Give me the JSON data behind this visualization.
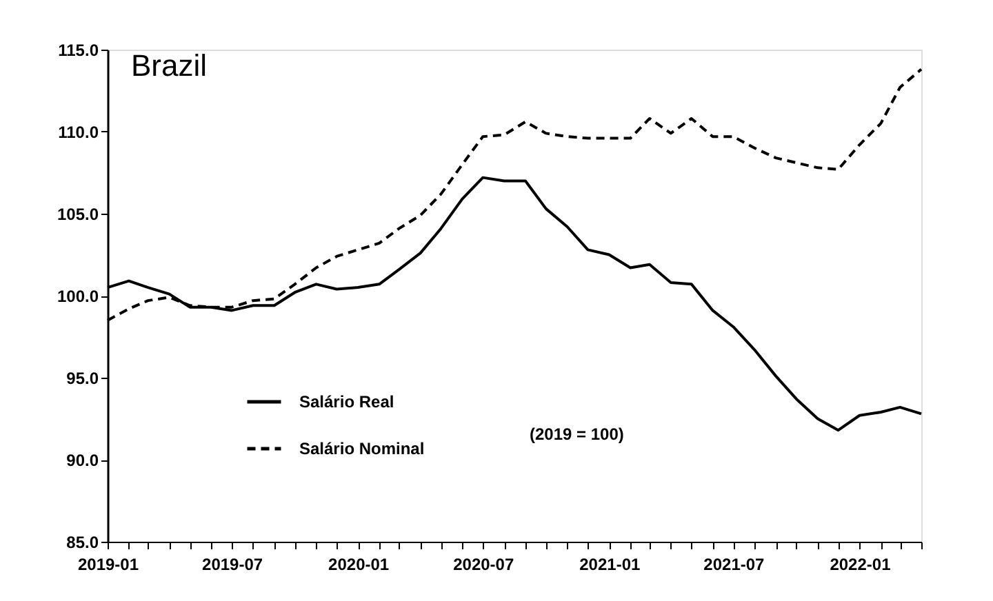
{
  "chart_data": {
    "type": "line",
    "title": "Brazil",
    "annotations": [
      "(2019 = 100)"
    ],
    "x": [
      "2019-01",
      "2019-02",
      "2019-03",
      "2019-04",
      "2019-05",
      "2019-06",
      "2019-07",
      "2019-08",
      "2019-09",
      "2019-10",
      "2019-11",
      "2019-12",
      "2020-01",
      "2020-02",
      "2020-03",
      "2020-04",
      "2020-05",
      "2020-06",
      "2020-07",
      "2020-08",
      "2020-09",
      "2020-10",
      "2020-11",
      "2020-12",
      "2021-01",
      "2021-02",
      "2021-03",
      "2021-04",
      "2021-05",
      "2021-06",
      "2021-07",
      "2021-08",
      "2021-09",
      "2021-10",
      "2021-11",
      "2021-12",
      "2022-01",
      "2022-02",
      "2022-03",
      "2022-04"
    ],
    "series": [
      {
        "name": "Salário Real",
        "color": "#000000",
        "line_style": "solid",
        "values": [
          100.5,
          100.9,
          100.5,
          100.1,
          99.3,
          99.3,
          99.1,
          99.4,
          99.4,
          100.2,
          100.7,
          100.4,
          100.5,
          100.7,
          101.6,
          102.6,
          104.1,
          105.9,
          107.2,
          107.0,
          107.0,
          105.3,
          104.2,
          102.8,
          102.5,
          101.7,
          101.9,
          100.8,
          100.7,
          99.1,
          98.1,
          96.7,
          95.1,
          93.7,
          92.5,
          91.8,
          92.7,
          92.9,
          93.2,
          92.8
        ]
      },
      {
        "name": "Salário Nominal",
        "color": "#000000",
        "line_style": "dashed",
        "values": [
          98.5,
          99.2,
          99.7,
          99.9,
          99.4,
          99.3,
          99.3,
          99.7,
          99.8,
          100.7,
          101.7,
          102.4,
          102.8,
          103.2,
          104.1,
          104.9,
          106.2,
          108.0,
          109.7,
          109.8,
          110.6,
          109.9,
          109.7,
          109.6,
          109.6,
          109.6,
          110.8,
          109.9,
          110.8,
          109.7,
          109.7,
          109.0,
          108.4,
          108.1,
          107.8,
          107.7,
          109.2,
          110.5,
          112.7,
          113.8
        ]
      }
    ],
    "xlim": [
      "2019-01",
      "2022-04"
    ],
    "xticks": [
      {
        "value": "2019-01",
        "label": "2019-01"
      },
      {
        "value": "2019-02",
        "label": null
      },
      {
        "value": "2019-03",
        "label": null
      },
      {
        "value": "2019-04",
        "label": null
      },
      {
        "value": "2019-05",
        "label": null
      },
      {
        "value": "2019-06",
        "label": null
      },
      {
        "value": "2019-07",
        "label": "2019-07"
      },
      {
        "value": "2019-08",
        "label": null
      },
      {
        "value": "2019-09",
        "label": null
      },
      {
        "value": "2019-10",
        "label": null
      },
      {
        "value": "2019-11",
        "label": null
      },
      {
        "value": "2019-12",
        "label": null
      },
      {
        "value": "2020-01",
        "label": "2020-01"
      },
      {
        "value": "2020-02",
        "label": null
      },
      {
        "value": "2020-03",
        "label": null
      },
      {
        "value": "2020-04",
        "label": null
      },
      {
        "value": "2020-05",
        "label": null
      },
      {
        "value": "2020-06",
        "label": null
      },
      {
        "value": "2020-07",
        "label": "2020-07"
      },
      {
        "value": "2020-08",
        "label": null
      },
      {
        "value": "2020-09",
        "label": null
      },
      {
        "value": "2020-10",
        "label": null
      },
      {
        "value": "2020-11",
        "label": null
      },
      {
        "value": "2020-12",
        "label": null
      },
      {
        "value": "2021-01",
        "label": "2021-01"
      },
      {
        "value": "2021-02",
        "label": null
      },
      {
        "value": "2021-03",
        "label": null
      },
      {
        "value": "2021-04",
        "label": null
      },
      {
        "value": "2021-05",
        "label": null
      },
      {
        "value": "2021-06",
        "label": null
      },
      {
        "value": "2021-07",
        "label": "2021-07"
      },
      {
        "value": "2021-08",
        "label": null
      },
      {
        "value": "2021-09",
        "label": null
      },
      {
        "value": "2021-10",
        "label": null
      },
      {
        "value": "2021-11",
        "label": null
      },
      {
        "value": "2021-12",
        "label": null
      },
      {
        "value": "2022-01",
        "label": "2022-01"
      },
      {
        "value": "2022-02",
        "label": null
      },
      {
        "value": "2022-03",
        "label": null
      },
      {
        "value": "2022-04",
        "label": null
      }
    ],
    "ylim": [
      85,
      115
    ],
    "yticks": [
      {
        "value": 85,
        "label": "85.0"
      },
      {
        "value": 90,
        "label": "90.0"
      },
      {
        "value": 95,
        "label": "95.0"
      },
      {
        "value": 100,
        "label": "100.0"
      },
      {
        "value": 105,
        "label": "105.0"
      },
      {
        "value": 110,
        "label": "110.0"
      },
      {
        "value": 115,
        "label": "115.0"
      }
    ],
    "grid": false,
    "legend": "bottom left",
    "marker": "none"
  }
}
